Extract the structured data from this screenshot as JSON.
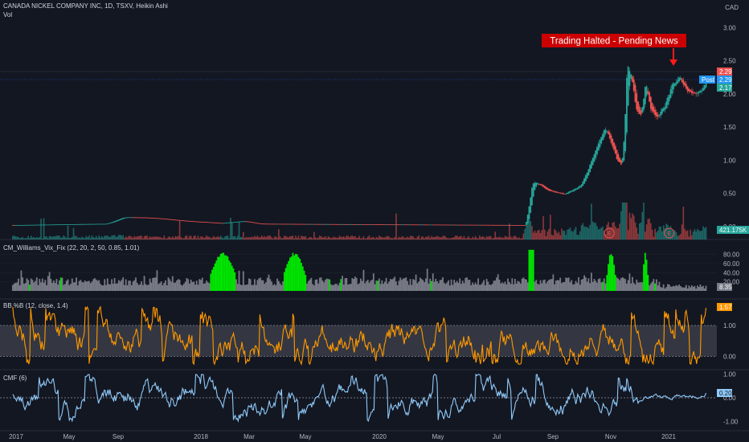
{
  "header": {
    "symbol_title": "CANADA NICKEL COMPANY INC, 1D, TSXV, Heikin Ashi",
    "volume_label": "Vol",
    "currency": "CAD"
  },
  "annotation": {
    "text": "Trading Halted - Pending News"
  },
  "earnings_markers": [
    {
      "label": "E",
      "date": "2020-06-15"
    },
    {
      "label": "E",
      "date": "2020-10-20"
    }
  ],
  "price_badges": {
    "high": "2.29",
    "post_label": "Post",
    "post_value": "2.29",
    "low": "2.17",
    "volume": "421.175K",
    "vix_fix": "8.35",
    "bb_pctb": "1.57",
    "cmf": "0.20"
  },
  "colors": {
    "background": "#131722",
    "up": "#26a69a",
    "down": "#ef5350",
    "vix_normal": "#787b86",
    "vix_high": "#00e600",
    "bb_line": "#ff9800",
    "cmf_line": "#90caf9",
    "annotation_bg": "#cc0000",
    "post_badge": "#2196f3"
  },
  "chart_data": [
    {
      "type": "candlestick",
      "title": "CANADA NICKEL COMPANY INC, 1D, TSXV, Heikin Ashi",
      "y_ticks": [
        "3.00",
        "2.50",
        "2.00",
        "1.50",
        "1.00",
        "0.50",
        "0.00"
      ],
      "ylim": [
        -0.1,
        3.15
      ],
      "x_ticks": [
        "2017",
        "May",
        "Sep",
        "2018",
        "Mar",
        "May",
        "2020",
        "May",
        "Jul",
        "Sep",
        "Nov",
        "2021"
      ],
      "close_path": [
        [
          "2017-01-01",
          0.02
        ],
        [
          "2017-04-01",
          0.03
        ],
        [
          "2017-07-15",
          0.04
        ],
        [
          "2017-08-20",
          0.14
        ],
        [
          "2017-10-15",
          0.13
        ],
        [
          "2017-12-31",
          0.08
        ],
        [
          "2018-03-15",
          0.05
        ],
        [
          "2018-05-01",
          0.08
        ],
        [
          "2018-06-01",
          0.04
        ],
        [
          "2019-12-20",
          0.02
        ],
        [
          "2020-01-03",
          0.72
        ],
        [
          "2020-02-01",
          0.55
        ],
        [
          "2020-03-10",
          0.48
        ],
        [
          "2020-04-15",
          0.62
        ],
        [
          "2020-05-01",
          0.9
        ],
        [
          "2020-05-20",
          1.25
        ],
        [
          "2020-06-05",
          1.5
        ],
        [
          "2020-06-20",
          1.2
        ],
        [
          "2020-07-01",
          0.95
        ],
        [
          "2020-07-10",
          0.92
        ],
        [
          "2020-07-15",
          1.3
        ],
        [
          "2020-07-22",
          2.7
        ],
        [
          "2020-07-30",
          2.3
        ],
        [
          "2020-08-10",
          1.7
        ],
        [
          "2020-08-20",
          1.62
        ],
        [
          "2020-08-30",
          2.25
        ],
        [
          "2020-09-10",
          1.7
        ],
        [
          "2020-09-25",
          1.65
        ],
        [
          "2020-10-10",
          1.85
        ],
        [
          "2020-10-25",
          2.15
        ],
        [
          "2020-11-10",
          2.25
        ],
        [
          "2020-11-25",
          2.05
        ],
        [
          "2020-12-10",
          2.0
        ],
        [
          "2020-12-31",
          2.1
        ],
        [
          "2021-01-06",
          2.29
        ]
      ],
      "last_price": 2.29,
      "post_price": 2.29,
      "low_reference": 2.17
    },
    {
      "type": "bar",
      "title": "Vol",
      "last_value": "421.175K"
    },
    {
      "type": "bar",
      "title": "CM_Williams_Vix_Fix (22, 20, 2, 50, 0.85, 1.01)",
      "y_ticks": [
        "80.00",
        "60.00",
        "40.00",
        "20.00"
      ],
      "ylim": [
        0,
        95
      ],
      "high_zones": [
        [
          "2018-02-20",
          "2018-04-15"
        ],
        [
          "2018-07-25",
          "2018-09-10"
        ],
        [
          "2020-06-10",
          "2020-06-28"
        ],
        [
          "2020-08-25",
          "2020-09-05"
        ]
      ],
      "last_value": 8.35
    },
    {
      "type": "line",
      "title": "BB %B (12, close, 1.4)",
      "y_ticks": [
        "1.00",
        "0.00"
      ],
      "ylim": [
        -0.3,
        1.7
      ],
      "band": [
        0,
        1
      ],
      "last_value": 1.57
    },
    {
      "type": "line",
      "title": "CMF (6)",
      "y_ticks": [
        "1.00",
        "0.00",
        "-1.00"
      ],
      "ylim": [
        -1.05,
        1.05
      ],
      "last_value": 0.2
    }
  ]
}
